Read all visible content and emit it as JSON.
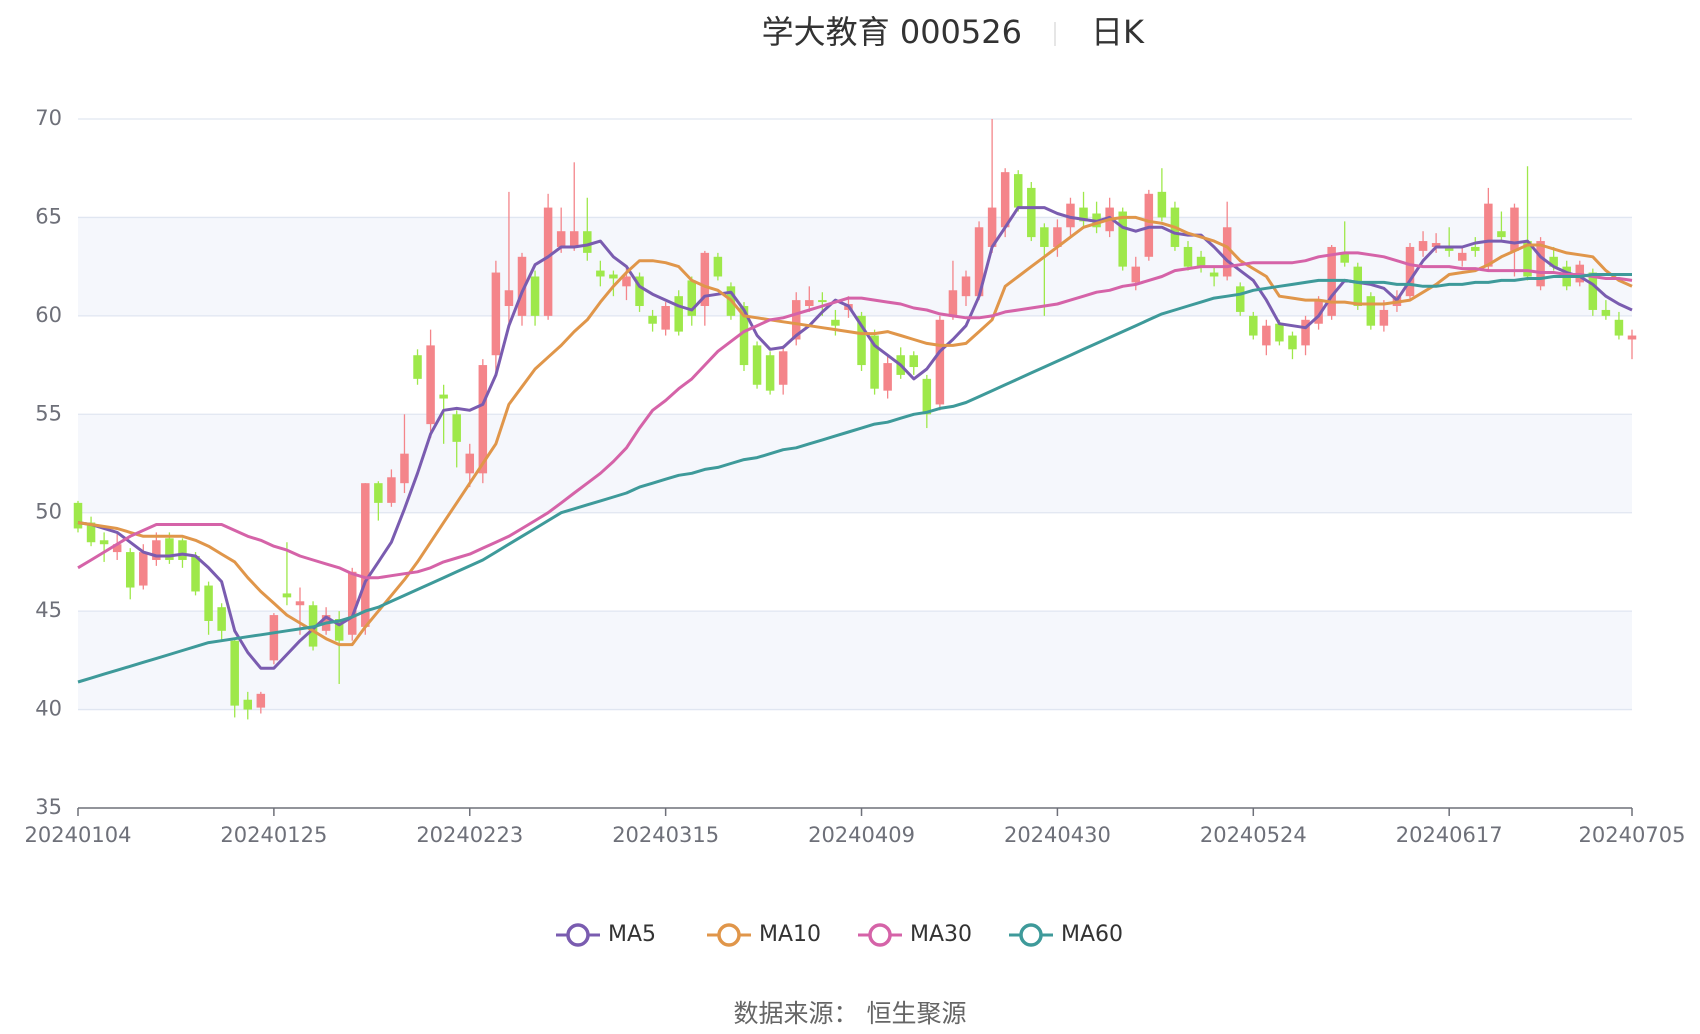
{
  "chart_data": {
    "type": "candlestick",
    "title": "学大教育 000526",
    "subtitle": "日K",
    "source": "数据来源： 恒生聚源",
    "categories": [
      "20240104",
      null,
      null,
      null,
      null,
      null,
      null,
      null,
      null,
      null,
      null,
      null,
      null,
      null,
      null,
      "20240125",
      null,
      null,
      null,
      null,
      null,
      null,
      null,
      null,
      null,
      null,
      null,
      null,
      null,
      null,
      "20240223",
      null,
      null,
      null,
      null,
      null,
      null,
      null,
      null,
      null,
      null,
      null,
      null,
      null,
      null,
      "20240315",
      null,
      null,
      null,
      null,
      null,
      null,
      null,
      null,
      null,
      null,
      null,
      null,
      null,
      null,
      "20240409",
      null,
      null,
      null,
      null,
      null,
      null,
      null,
      null,
      null,
      null,
      null,
      null,
      null,
      null,
      "20240430",
      null,
      null,
      null,
      null,
      null,
      null,
      null,
      null,
      null,
      null,
      null,
      null,
      null,
      null,
      "20240524",
      null,
      null,
      null,
      null,
      null,
      null,
      null,
      null,
      null,
      null,
      null,
      null,
      null,
      null,
      "20240617",
      null,
      null,
      null,
      null,
      null,
      null,
      null,
      null,
      null,
      null,
      null,
      null,
      null,
      "20240705"
    ],
    "open": [
      50.5,
      49.5,
      48.6,
      48.0,
      48.0,
      46.3,
      47.6,
      48.7,
      48.6,
      47.8,
      46.3,
      45.2,
      43.5,
      40.5,
      40.1,
      42.5,
      45.9,
      45.3,
      45.3,
      44.0,
      44.6,
      43.8,
      44.2,
      51.5,
      50.5,
      51.5,
      58.0,
      54.5,
      56.0,
      55.0,
      52.0,
      52.0,
      58.0,
      60.5,
      60.0,
      62.0,
      60.0,
      63.5,
      63.5,
      64.3,
      62.3,
      62.1,
      61.5,
      62.0,
      60.0,
      59.3,
      61.0,
      61.8,
      60.5,
      63.0,
      61.5,
      60.5,
      58.5,
      58.0,
      56.5,
      58.8,
      60.5,
      60.8,
      59.8,
      60.3,
      60.0,
      59.0,
      56.2,
      58.0,
      58.0,
      56.8,
      55.5,
      60.0,
      61.0,
      61.0,
      63.5,
      64.5,
      67.2,
      66.5,
      64.5,
      63.5,
      64.5,
      65.5,
      65.2,
      64.3,
      65.3,
      61.7,
      63.0,
      66.3,
      65.5,
      63.5,
      63.0,
      62.2,
      62.0,
      61.5,
      60.0,
      58.5,
      59.6,
      59.0,
      58.5,
      59.6,
      60.0,
      63.2,
      62.5,
      61.0,
      59.5,
      60.5,
      61.0,
      63.3,
      63.5,
      63.5,
      62.8,
      63.5,
      62.5,
      64.3,
      63.3,
      63.8,
      61.5,
      63.0,
      62.5,
      61.7,
      62.2,
      60.3,
      59.8,
      58.8
    ],
    "close": [
      49.2,
      48.5,
      48.4,
      48.4,
      46.2,
      48.0,
      48.6,
      47.6,
      47.6,
      46.0,
      44.5,
      44.0,
      40.2,
      40.0,
      40.8,
      44.8,
      45.7,
      45.5,
      43.2,
      44.8,
      43.5,
      47.0,
      51.5,
      50.5,
      51.8,
      53.0,
      56.8,
      58.5,
      55.8,
      53.6,
      53.0,
      57.5,
      62.2,
      61.3,
      63.0,
      60.0,
      65.5,
      64.3,
      64.3,
      63.2,
      62.0,
      61.9,
      62.0,
      60.5,
      59.6,
      60.5,
      59.2,
      60.0,
      63.2,
      62.0,
      60.0,
      57.5,
      56.5,
      56.2,
      58.2,
      60.8,
      60.8,
      60.7,
      59.5,
      60.6,
      57.5,
      56.3,
      57.6,
      57.0,
      57.4,
      55.0,
      59.8,
      61.3,
      62.0,
      64.5,
      65.5,
      67.3,
      65.5,
      64.0,
      63.5,
      64.5,
      65.7,
      64.8,
      64.5,
      65.5,
      62.5,
      62.5,
      66.2,
      65.0,
      63.5,
      62.5,
      62.5,
      62.0,
      64.5,
      60.2,
      59.0,
      59.5,
      58.7,
      58.3,
      59.8,
      60.8,
      63.5,
      62.7,
      60.5,
      59.5,
      60.3,
      61.0,
      63.5,
      63.8,
      63.7,
      63.3,
      63.2,
      63.3,
      65.7,
      64.0,
      65.5,
      62.0,
      63.8,
      62.5,
      61.5,
      62.6,
      60.3,
      60.0,
      59.0,
      59.0
    ],
    "low": [
      49.0,
      48.3,
      47.5,
      47.6,
      45.6,
      46.1,
      47.3,
      47.4,
      47.2,
      45.8,
      43.8,
      43.5,
      39.6,
      39.5,
      39.8,
      42.3,
      45.3,
      43.8,
      43.0,
      43.8,
      41.3,
      43.5,
      43.8,
      49.6,
      50.3,
      51.0,
      56.5,
      53.8,
      53.5,
      52.3,
      51.3,
      51.5,
      57.0,
      59.5,
      59.5,
      59.5,
      59.8,
      63.2,
      63.3,
      62.8,
      61.5,
      61.0,
      60.8,
      60.2,
      59.2,
      59.0,
      59.0,
      59.5,
      59.5,
      61.8,
      59.8,
      57.2,
      56.3,
      56.0,
      56.0,
      58.5,
      60.2,
      60.0,
      59.0,
      59.9,
      57.2,
      56.0,
      55.8,
      56.8,
      57.0,
      54.3,
      55.2,
      59.8,
      60.5,
      60.8,
      63.2,
      64.0,
      65.3,
      63.8,
      60.0,
      63.0,
      64.0,
      64.5,
      64.2,
      64.0,
      62.3,
      61.3,
      62.8,
      64.8,
      63.3,
      62.3,
      62.2,
      61.5,
      61.8,
      60.0,
      58.8,
      58.0,
      58.5,
      57.8,
      58.0,
      59.3,
      59.8,
      62.5,
      60.3,
      59.3,
      59.2,
      60.2,
      60.8,
      63.0,
      63.2,
      63.0,
      62.5,
      63.0,
      62.3,
      63.8,
      62.0,
      61.8,
      61.3,
      62.3,
      61.3,
      61.5,
      60.0,
      59.8,
      58.8,
      57.8
    ],
    "high": [
      50.6,
      49.8,
      49.0,
      49.0,
      48.2,
      48.4,
      49.0,
      49.0,
      48.7,
      48.0,
      46.5,
      45.4,
      43.6,
      40.9,
      40.9,
      44.9,
      48.5,
      46.2,
      45.5,
      45.2,
      45.0,
      47.2,
      51.5,
      51.6,
      52.2,
      55.0,
      58.3,
      59.3,
      56.5,
      55.2,
      53.5,
      57.8,
      62.8,
      66.3,
      63.2,
      62.3,
      66.2,
      65.5,
      67.8,
      66.0,
      62.8,
      62.3,
      62.5,
      62.2,
      60.3,
      60.7,
      61.3,
      62.0,
      63.3,
      63.2,
      61.7,
      60.7,
      58.7,
      58.2,
      58.5,
      61.2,
      61.5,
      61.2,
      60.3,
      61.0,
      60.2,
      59.3,
      58.0,
      58.4,
      58.2,
      57.0,
      60.0,
      62.8,
      62.3,
      64.8,
      70.0,
      67.5,
      67.4,
      66.8,
      64.7,
      64.9,
      66.0,
      66.3,
      65.8,
      66.0,
      65.5,
      63.0,
      66.4,
      67.5,
      65.8,
      63.8,
      63.3,
      62.5,
      65.8,
      61.7,
      60.2,
      59.8,
      59.8,
      59.2,
      60.0,
      61.0,
      63.6,
      64.8,
      62.7,
      61.2,
      60.8,
      61.3,
      63.7,
      64.3,
      64.2,
      64.5,
      63.5,
      64.0,
      66.5,
      65.3,
      65.7,
      67.6,
      64.0,
      63.5,
      62.8,
      62.8,
      62.4,
      60.8,
      60.2,
      59.3
    ],
    "up_color": "#f4858a",
    "down_color": "#9ee84a",
    "series": [
      {
        "name": "MA5",
        "color": "#7a5cb0",
        "values": [
          49.5,
          49.4,
          49.2,
          49.0,
          48.5,
          48.0,
          47.8,
          47.8,
          47.9,
          47.8,
          47.2,
          46.5,
          44.0,
          42.9,
          42.1,
          42.1,
          42.8,
          43.5,
          44.1,
          44.7,
          44.3,
          44.7,
          46.5,
          47.5,
          48.5,
          50.2,
          52.0,
          54.0,
          55.2,
          55.3,
          55.2,
          55.5,
          57.0,
          59.5,
          61.2,
          62.6,
          63.0,
          63.5,
          63.5,
          63.6,
          63.8,
          63.0,
          62.5,
          61.5,
          61.1,
          60.8,
          60.5,
          60.3,
          61.0,
          61.1,
          61.2,
          60.3,
          59.0,
          58.3,
          58.4,
          59.0,
          59.5,
          60.2,
          60.8,
          60.5,
          59.5,
          58.5,
          58.0,
          57.5,
          56.8,
          57.3,
          58.2,
          58.8,
          59.5,
          61.0,
          63.5,
          64.5,
          65.5,
          65.5,
          65.5,
          65.2,
          65.0,
          64.9,
          64.8,
          65.0,
          64.5,
          64.3,
          64.5,
          64.5,
          64.2,
          64.1,
          64.1,
          63.5,
          62.8,
          62.3,
          61.8,
          60.8,
          59.6,
          59.5,
          59.4,
          60.0,
          61.0,
          61.8,
          61.7,
          61.6,
          61.4,
          60.8,
          61.8,
          62.8,
          63.5,
          63.5,
          63.5,
          63.7,
          63.8,
          63.8,
          63.7,
          63.8,
          63.0,
          62.5,
          62.2,
          62.0,
          61.6,
          61.0,
          60.6,
          60.3
        ]
      },
      {
        "name": "MA10",
        "color": "#e0964a",
        "values": [
          49.5,
          49.4,
          49.3,
          49.2,
          49.0,
          48.8,
          48.8,
          48.8,
          48.8,
          48.6,
          48.3,
          47.9,
          47.5,
          46.7,
          46.0,
          45.4,
          44.8,
          44.4,
          44.0,
          43.6,
          43.3,
          43.3,
          44.2,
          45.0,
          45.8,
          46.6,
          47.5,
          48.5,
          49.5,
          50.5,
          51.5,
          52.5,
          53.5,
          55.5,
          56.4,
          57.3,
          57.9,
          58.5,
          59.2,
          59.8,
          60.7,
          61.5,
          62.2,
          62.8,
          62.8,
          62.7,
          62.5,
          61.8,
          61.5,
          61.3,
          60.8,
          60.0,
          59.9,
          59.8,
          59.7,
          59.6,
          59.5,
          59.4,
          59.3,
          59.2,
          59.1,
          59.1,
          59.2,
          59.0,
          58.8,
          58.6,
          58.5,
          58.5,
          58.6,
          59.2,
          59.8,
          61.5,
          62.0,
          62.5,
          63.0,
          63.5,
          64.0,
          64.5,
          64.7,
          64.9,
          65.0,
          65.0,
          64.8,
          64.7,
          64.5,
          64.2,
          64.0,
          63.8,
          63.5,
          62.8,
          62.4,
          62.0,
          61.0,
          60.9,
          60.8,
          60.8,
          60.7,
          60.7,
          60.6,
          60.6,
          60.6,
          60.7,
          60.8,
          61.2,
          61.6,
          62.1,
          62.2,
          62.3,
          62.6,
          63.0,
          63.3,
          63.6,
          63.6,
          63.4,
          63.2,
          63.1,
          63.0,
          62.3,
          61.8,
          61.5
        ]
      },
      {
        "name": "MA30",
        "color": "#d563a8",
        "values": [
          47.2,
          47.6,
          48.0,
          48.4,
          48.8,
          49.1,
          49.4,
          49.4,
          49.4,
          49.4,
          49.4,
          49.4,
          49.1,
          48.8,
          48.6,
          48.3,
          48.1,
          47.8,
          47.6,
          47.4,
          47.2,
          46.9,
          46.7,
          46.7,
          46.8,
          46.9,
          47.0,
          47.2,
          47.5,
          47.7,
          47.9,
          48.2,
          48.5,
          48.8,
          49.2,
          49.6,
          50.0,
          50.5,
          51.0,
          51.5,
          52.0,
          52.6,
          53.3,
          54.3,
          55.2,
          55.7,
          56.3,
          56.8,
          57.5,
          58.2,
          58.7,
          59.2,
          59.5,
          59.8,
          59.9,
          60.1,
          60.3,
          60.5,
          60.7,
          60.9,
          60.9,
          60.8,
          60.7,
          60.6,
          60.4,
          60.3,
          60.1,
          60.0,
          59.9,
          59.9,
          60.0,
          60.2,
          60.3,
          60.4,
          60.5,
          60.6,
          60.8,
          61.0,
          61.2,
          61.3,
          61.5,
          61.6,
          61.8,
          62.0,
          62.3,
          62.4,
          62.5,
          62.5,
          62.5,
          62.6,
          62.7,
          62.7,
          62.7,
          62.7,
          62.8,
          63.0,
          63.1,
          63.2,
          63.2,
          63.1,
          63.0,
          62.8,
          62.6,
          62.5,
          62.5,
          62.5,
          62.4,
          62.4,
          62.3,
          62.3,
          62.3,
          62.3,
          62.2,
          62.2,
          62.1,
          62.1,
          62.0,
          61.9,
          61.9,
          61.8
        ]
      },
      {
        "name": "MA60",
        "color": "#3e9a9a",
        "values": [
          41.4,
          41.6,
          41.8,
          42.0,
          42.2,
          42.4,
          42.6,
          42.8,
          43.0,
          43.2,
          43.4,
          43.5,
          43.6,
          43.7,
          43.8,
          43.9,
          44.0,
          44.1,
          44.2,
          44.4,
          44.5,
          44.7,
          45.0,
          45.2,
          45.5,
          45.8,
          46.1,
          46.4,
          46.7,
          47.0,
          47.3,
          47.6,
          48.0,
          48.4,
          48.8,
          49.2,
          49.6,
          50.0,
          50.2,
          50.4,
          50.6,
          50.8,
          51.0,
          51.3,
          51.5,
          51.7,
          51.9,
          52.0,
          52.2,
          52.3,
          52.5,
          52.7,
          52.8,
          53.0,
          53.2,
          53.3,
          53.5,
          53.7,
          53.9,
          54.1,
          54.3,
          54.5,
          54.6,
          54.8,
          55.0,
          55.1,
          55.3,
          55.4,
          55.6,
          55.9,
          56.2,
          56.5,
          56.8,
          57.1,
          57.4,
          57.7,
          58.0,
          58.3,
          58.6,
          58.9,
          59.2,
          59.5,
          59.8,
          60.1,
          60.3,
          60.5,
          60.7,
          60.9,
          61.0,
          61.1,
          61.3,
          61.4,
          61.5,
          61.6,
          61.7,
          61.8,
          61.8,
          61.8,
          61.7,
          61.7,
          61.7,
          61.6,
          61.6,
          61.5,
          61.5,
          61.6,
          61.6,
          61.7,
          61.7,
          61.8,
          61.8,
          61.9,
          61.9,
          62.0,
          62.0,
          62.0,
          62.1,
          62.1,
          62.1,
          62.1
        ]
      }
    ],
    "ylim": [
      35,
      70
    ],
    "yticks": [
      35,
      40,
      45,
      50,
      55,
      60,
      65,
      70
    ],
    "grid": true
  }
}
